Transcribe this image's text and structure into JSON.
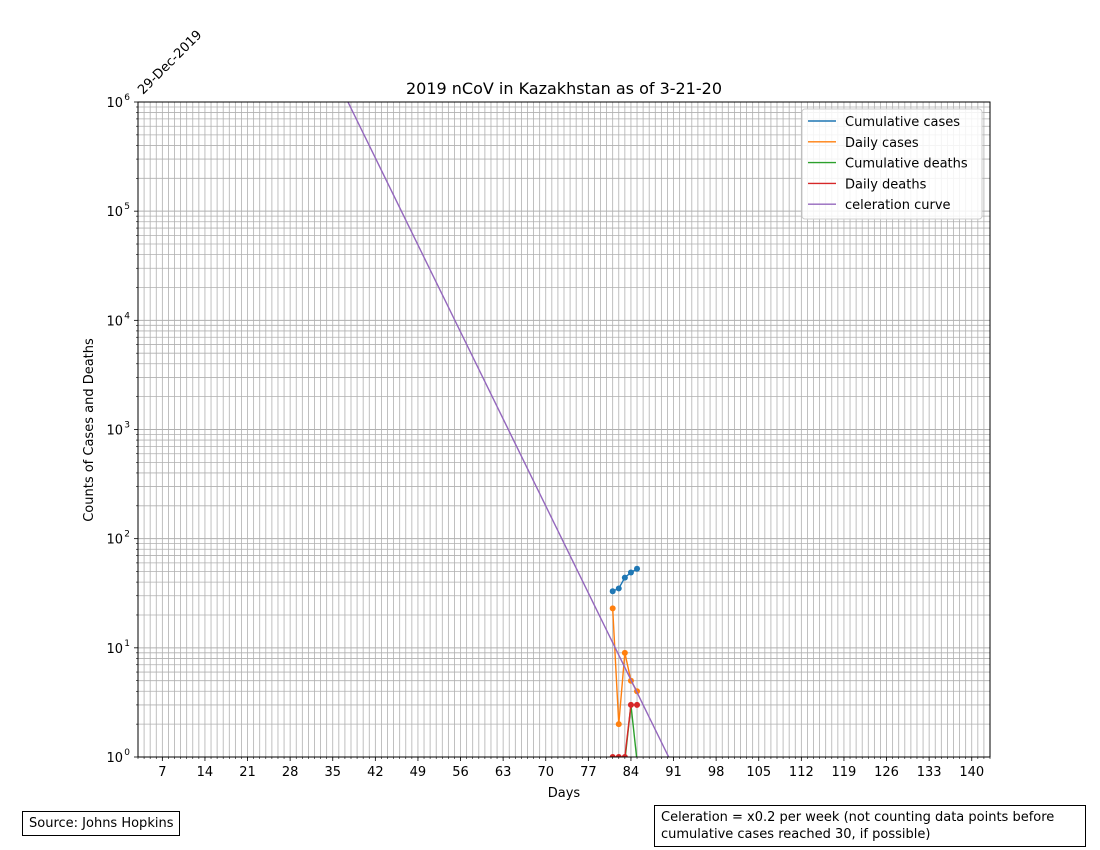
{
  "chart_data": {
    "type": "line",
    "title": "2019 nCoV in Kazakhstan as of 3-21-20",
    "xlabel": "Days",
    "ylabel": "Counts of Cases and Deaths",
    "start_date_label": "29-Dec-2019",
    "x_scale": "linear",
    "y_scale": "log",
    "xlim": [
      3,
      143
    ],
    "ylim": [
      1,
      1000000
    ],
    "x_ticks": [
      7,
      14,
      21,
      28,
      35,
      42,
      49,
      56,
      63,
      70,
      77,
      84,
      91,
      98,
      105,
      112,
      119,
      126,
      133,
      140
    ],
    "y_ticks": [
      {
        "value": 1,
        "base": "10",
        "exp": "0"
      },
      {
        "value": 10,
        "base": "10",
        "exp": "1"
      },
      {
        "value": 100,
        "base": "10",
        "exp": "2"
      },
      {
        "value": 1000,
        "base": "10",
        "exp": "3"
      },
      {
        "value": 10000,
        "base": "10",
        "exp": "4"
      },
      {
        "value": 100000,
        "base": "10",
        "exp": "5"
      },
      {
        "value": 1000000,
        "base": "10",
        "exp": "6"
      }
    ],
    "grid": true,
    "legend_position": "top-right",
    "series": [
      {
        "name": "Cumulative cases",
        "color": "#1f77b4",
        "markers": true,
        "x": [
          81,
          82,
          83,
          84,
          85
        ],
        "y": [
          33,
          35,
          44,
          49,
          53
        ]
      },
      {
        "name": "Daily cases",
        "color": "#ff7f0e",
        "markers": true,
        "x": [
          81,
          82,
          83,
          84,
          85
        ],
        "y": [
          23,
          2,
          9,
          5,
          4
        ]
      },
      {
        "name": "Cumulative deaths",
        "color": "#2ca02c",
        "markers": false,
        "x": [
          83,
          84,
          85
        ],
        "y": [
          0,
          3,
          0
        ]
      },
      {
        "name": "Daily deaths",
        "color": "#d62728",
        "markers": true,
        "x": [
          81,
          82,
          83,
          84,
          85
        ],
        "y": [
          1,
          1,
          1,
          3,
          3
        ]
      },
      {
        "name": "celeration curve",
        "color": "#9467bd",
        "markers": false,
        "x": [
          37.5,
          90.2
        ],
        "y": [
          1000000,
          1
        ]
      }
    ]
  },
  "source_note": "Source: Johns Hopkins",
  "celeration_note": "Celeration = x0.2 per week (not counting data points before cumulative cases reached 30, if possible)"
}
